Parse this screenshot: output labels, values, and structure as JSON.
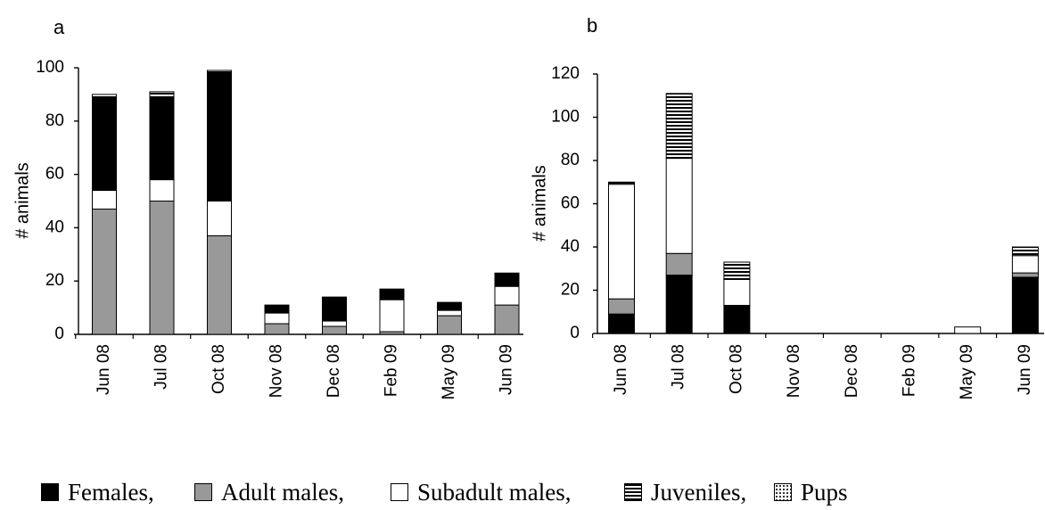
{
  "colors": {
    "Females": "#000000",
    "Adult males": "#999999",
    "Subadult males": "#ffffff",
    "Juveniles": "horizontal-stripes",
    "Pups": "dotted"
  },
  "legend": {
    "items": [
      {
        "key": "Females",
        "label": "Females,"
      },
      {
        "key": "Adult males",
        "label": "Adult males,"
      },
      {
        "key": "Subadult males",
        "label": "Subadult males,"
      },
      {
        "key": "Juveniles",
        "label": "Juveniles,"
      },
      {
        "key": "Pups",
        "label": "Pups"
      }
    ]
  },
  "chart_data": [
    {
      "type": "bar",
      "stacked": true,
      "title": "a",
      "xlabel": "",
      "ylabel": "# animals",
      "ylim": [
        0,
        100
      ],
      "yticks": [
        0,
        20,
        40,
        60,
        80,
        100
      ],
      "categories": [
        "Jun 08",
        "Jul 08",
        "Oct 08",
        "Nov 08",
        "Dec 08",
        "Feb 09",
        "May 09",
        "Jun 09"
      ],
      "series": [
        {
          "name": "Adult males",
          "values": [
            47,
            50,
            37,
            4,
            3,
            1,
            7,
            11
          ]
        },
        {
          "name": "Subadult males",
          "values": [
            7,
            8,
            13,
            4,
            2,
            12,
            2,
            7
          ]
        },
        {
          "name": "Females",
          "values": [
            35,
            31,
            48,
            3,
            9,
            4,
            3,
            5
          ]
        },
        {
          "name": "Juveniles",
          "values": [
            1,
            2,
            1,
            0,
            0,
            0,
            0,
            0
          ]
        }
      ],
      "grid": false
    },
    {
      "type": "bar",
      "stacked": true,
      "title": "b",
      "xlabel": "",
      "ylabel": "# animals",
      "ylim": [
        0,
        120
      ],
      "yticks": [
        0,
        20,
        40,
        60,
        80,
        100,
        120
      ],
      "categories": [
        "Jun 08",
        "Jul 08",
        "Oct 08",
        "Nov 08",
        "Dec 08",
        "Feb 09",
        "May 09",
        "Jun 09"
      ],
      "series": [
        {
          "name": "Females",
          "values": [
            9,
            27,
            13,
            0,
            0,
            0,
            0,
            26
          ]
        },
        {
          "name": "Adult males",
          "values": [
            7,
            10,
            0,
            0,
            0,
            0,
            0,
            2
          ]
        },
        {
          "name": "Subadult males",
          "values": [
            53,
            44,
            12,
            0,
            0,
            0,
            3,
            8
          ]
        },
        {
          "name": "Juveniles",
          "values": [
            1,
            30,
            8,
            0,
            0,
            0,
            0,
            4
          ]
        }
      ],
      "grid": false
    }
  ]
}
